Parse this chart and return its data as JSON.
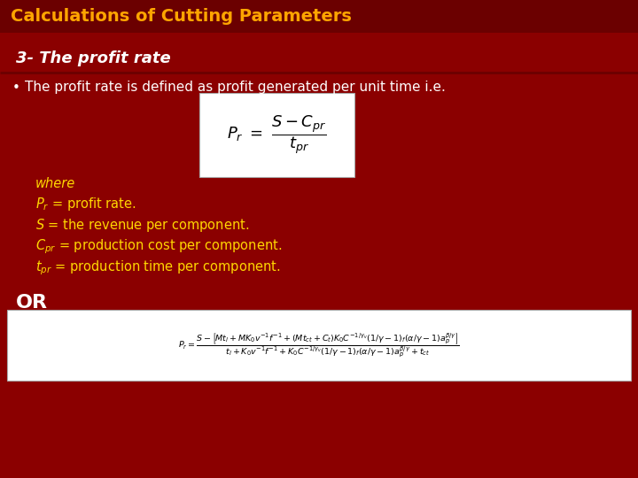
{
  "bg_color": "#8B0000",
  "header_bg": "#6B0000",
  "title_text": "Calculations of Cutting Parameters",
  "title_color": "#FFA500",
  "subtitle_text": "3- The profit rate",
  "subtitle_color": "#FFFFFF",
  "bullet_text": "The profit rate is defined as profit generated per unit time i.e.",
  "bullet_color": "#FFFFFF",
  "where_color": "#FFD700",
  "yellow_color": "#FFD700",
  "white_color": "#FFFFFF",
  "formula_box_color": "#FFFFFF",
  "or_color": "#FFFFFF",
  "figw": 7.2,
  "figh": 5.4,
  "dpi": 100
}
